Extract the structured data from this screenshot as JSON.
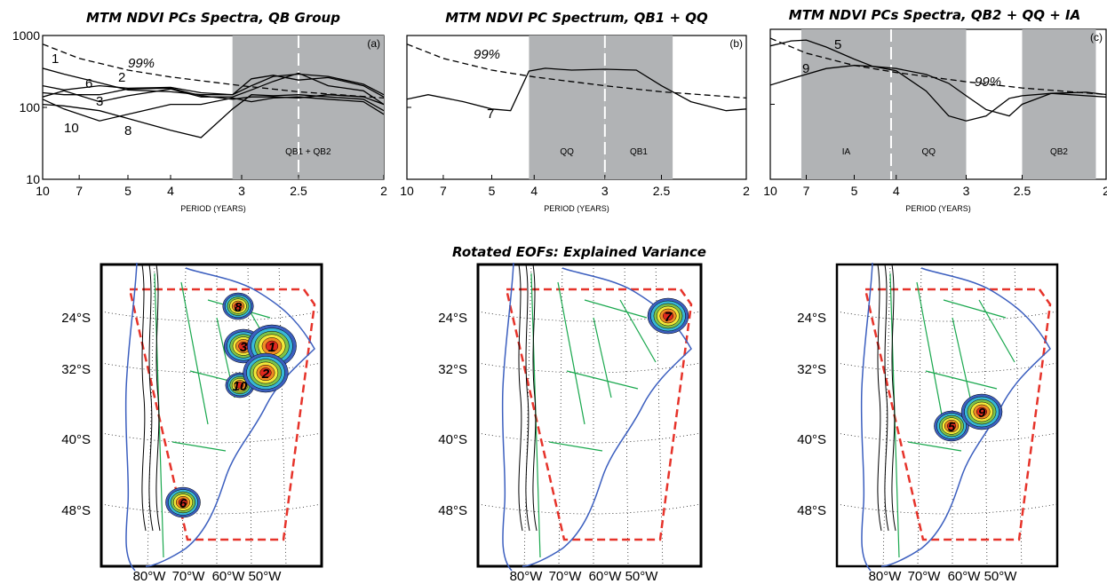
{
  "figure_title": "Rotated EOFs: Explained Variance",
  "chart_data": [
    {
      "type": "line",
      "title": "MTM NDVI PCs Spectra, QB Group",
      "panel_label": "(a)",
      "xlabel": "PERIOD (YEARS)",
      "x_ticks": [
        "10",
        "7",
        "5",
        "4",
        "3",
        "2.5",
        "2"
      ],
      "x_tick_values": [
        10,
        7,
        5,
        4,
        3,
        2.5,
        2
      ],
      "y_ticks": [
        "10",
        "100",
        "1000"
      ],
      "y_tick_values": [
        10,
        100,
        1000
      ],
      "ylim": [
        10,
        1000
      ],
      "y_scale": "log",
      "x_scale": "frequency",
      "bands": [
        {
          "label": "QB1 + QB2",
          "from_period": 3.1,
          "to_period": 2.0
        }
      ],
      "dashed_markers": [
        2.5
      ],
      "significance": {
        "label": "99%",
        "x": [
          10,
          7,
          5,
          4,
          3,
          2.5,
          2
        ],
        "y": [
          760,
          480,
          330,
          265,
          200,
          165,
          135
        ]
      },
      "series": [
        {
          "name": "1",
          "x": [
            10,
            8,
            6,
            5,
            4,
            3.5,
            3.1,
            2.9,
            2.7,
            2.5,
            2.3,
            2.1,
            2
          ],
          "y": [
            350,
            290,
            220,
            175,
            165,
            150,
            150,
            200,
            270,
            290,
            270,
            210,
            150
          ]
        },
        {
          "name": "2",
          "x": [
            10,
            8,
            6,
            5,
            4,
            3.5,
            3.1,
            2.9,
            2.7,
            2.5,
            2.3,
            2.1,
            2
          ],
          "y": [
            200,
            175,
            200,
            185,
            190,
            160,
            150,
            250,
            280,
            240,
            260,
            200,
            140
          ]
        },
        {
          "name": "3",
          "x": [
            10,
            8,
            6,
            5,
            4,
            3.5,
            3.1,
            2.9,
            2.7,
            2.5,
            2.3,
            2.1,
            2
          ],
          "y": [
            140,
            170,
            120,
            145,
            180,
            140,
            140,
            175,
            230,
            300,
            200,
            170,
            110
          ]
        },
        {
          "name": "6",
          "x": [
            10,
            8,
            6,
            5,
            4,
            3.5,
            3.1,
            2.9,
            2.7,
            2.5,
            2.3,
            2.1,
            2
          ],
          "y": [
            160,
            150,
            150,
            180,
            185,
            145,
            130,
            140,
            140,
            135,
            150,
            140,
            110
          ]
        },
        {
          "name": "8",
          "x": [
            10,
            8,
            6,
            5,
            4,
            3.5,
            3.1,
            2.9,
            2.7,
            2.5,
            2.3,
            2.1,
            2
          ],
          "y": [
            110,
            105,
            90,
            70,
            48,
            38,
            95,
            150,
            145,
            150,
            140,
            130,
            90
          ]
        },
        {
          "name": "10",
          "x": [
            10,
            8,
            6,
            5,
            4,
            3.5,
            3.1,
            2.9,
            2.7,
            2.5,
            2.3,
            2.1,
            2
          ],
          "y": [
            130,
            95,
            65,
            80,
            110,
            110,
            135,
            120,
            135,
            140,
            130,
            120,
            80
          ]
        }
      ]
    },
    {
      "type": "line",
      "title": "MTM NDVI PC Spectrum, QB1 + QQ",
      "panel_label": "(b)",
      "xlabel": "PERIOD (YEARS)",
      "x_ticks": [
        "10",
        "7",
        "5",
        "4",
        "3",
        "2.5",
        "2"
      ],
      "x_tick_values": [
        10,
        7,
        5,
        4,
        3,
        2.5,
        2
      ],
      "y_scale": "log",
      "x_scale": "frequency",
      "bands": [
        {
          "label": "QQ",
          "from_period": 4.1,
          "to_period": 3.0
        },
        {
          "label": "QB1",
          "from_period": 3.0,
          "to_period": 2.42
        }
      ],
      "dashed_markers": [
        3.0
      ],
      "significance": {
        "label": "99%",
        "x": [
          10,
          7,
          5,
          4,
          3,
          2.5,
          2
        ],
        "y": [
          760,
          480,
          330,
          265,
          200,
          165,
          135
        ]
      },
      "series": [
        {
          "name": "7",
          "x": [
            10,
            8,
            6,
            5,
            4.5,
            4.1,
            3.8,
            3.4,
            3,
            2.7,
            2.5,
            2.3,
            2.1,
            2
          ],
          "y": [
            130,
            150,
            120,
            95,
            90,
            320,
            350,
            330,
            340,
            330,
            200,
            120,
            90,
            95
          ]
        }
      ]
    },
    {
      "type": "line",
      "title": "MTM NDVI PCs Spectra, QB2 + QQ + IA",
      "panel_label": "(c)",
      "xlabel": "PERIOD (YEARS)",
      "x_ticks": [
        "10",
        "7",
        "5",
        "4",
        "3",
        "2.5",
        "2"
      ],
      "x_tick_values": [
        10,
        7,
        5,
        4,
        3,
        2.5,
        2
      ],
      "y_scale": "log",
      "x_scale": "frequency",
      "bands": [
        {
          "label": "IA",
          "from_period": 7.3,
          "to_period": 4.1
        },
        {
          "label": "QQ",
          "from_period": 4.1,
          "to_period": 3.0
        },
        {
          "label": "QB2",
          "from_period": 2.5,
          "to_period": 2.05
        }
      ],
      "dashed_markers": [
        4.1
      ],
      "significance": {
        "label": "99%",
        "x": [
          10,
          7,
          5,
          4,
          3,
          2.5,
          2
        ],
        "y": [
          760,
          480,
          330,
          265,
          200,
          165,
          135
        ]
      },
      "series": [
        {
          "name": "5",
          "x": [
            10,
            8,
            7,
            6,
            5,
            4.5,
            4,
            3.5,
            3.2,
            3,
            2.8,
            2.6,
            2.5,
            2.3,
            2.1,
            2
          ],
          "y": [
            600,
            700,
            720,
            580,
            400,
            320,
            280,
            150,
            70,
            60,
            70,
            120,
            130,
            140,
            130,
            125
          ]
        },
        {
          "name": "9",
          "x": [
            10,
            8,
            6,
            5,
            4.5,
            4,
            3.5,
            3.2,
            3,
            2.8,
            2.6,
            2.5,
            2.3,
            2.1,
            2
          ],
          "y": [
            180,
            220,
            300,
            330,
            320,
            300,
            250,
            190,
            130,
            85,
            70,
            100,
            140,
            145,
            135
          ]
        }
      ]
    }
  ],
  "maps": [
    {
      "lat_labels": [
        "24°S",
        "32°S",
        "40°S",
        "48°S"
      ],
      "lon_labels": [
        "80°W",
        "70°W",
        "60°W",
        "50°W"
      ],
      "eof_labels": [
        "8",
        "3",
        "1",
        "10",
        "2",
        "6"
      ],
      "colors": {
        "blue": "#3c5fbf",
        "cyan": "#38b8d8",
        "green": "#7cc24a",
        "yellow": "#f4e83a",
        "orange": "#f08a24",
        "red": "#e0281e",
        "border": "#1aa84e",
        "box": "#e6332a"
      }
    },
    {
      "lat_labels": [
        "24°S",
        "32°S",
        "40°S",
        "48°S"
      ],
      "lon_labels": [
        "80°W",
        "70°W",
        "60°W",
        "50°W"
      ],
      "eof_labels": [
        "7"
      ]
    },
    {
      "lat_labels": [
        "24°S",
        "32°S",
        "40°S",
        "48°S"
      ],
      "lon_labels": [
        "80°W",
        "70°W",
        "60°W",
        "50°W"
      ],
      "eof_labels": [
        "5",
        "9"
      ]
    }
  ]
}
